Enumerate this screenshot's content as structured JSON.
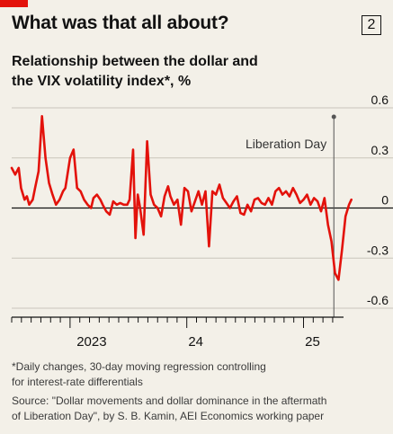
{
  "header": {
    "title": "What was that all about?",
    "badge": "2",
    "subtitle_line1": "Relationship between the dollar and",
    "subtitle_line2": "the VIX volatility index*, %",
    "accent_color": "#e3120b"
  },
  "footer": {
    "footnote_line1": "*Daily changes, 30-day moving regression controlling",
    "footnote_line2": "for interest-rate differentials",
    "source_line1": "Source: \"Dollar movements and dollar dominance in the aftermath",
    "source_line2": "of Liberation Day\", by S. B. Kamin, AEI Economics working paper"
  },
  "chart_data": {
    "type": "line",
    "title": "What was that all about?",
    "subtitle": "Relationship between the dollar and the VIX volatility index*, %",
    "ylim": [
      -0.6,
      0.6
    ],
    "yticks": [
      0.6,
      0.3,
      0,
      -0.3,
      -0.6
    ],
    "ytick_labels": [
      "0.6",
      "0.3",
      "0",
      "-0.3",
      "-0.6"
    ],
    "xlim": [
      2022.5,
      2025.42
    ],
    "xtick_labels": [
      "2023",
      "24",
      "25"
    ],
    "xtick_positions": [
      2023.0,
      2024.0,
      2025.0
    ],
    "grid": true,
    "series_color": "#e3120b",
    "annotation": {
      "label": "Liberation Day",
      "x": 2025.26
    },
    "series": [
      {
        "x": [
          2022.5,
          2022.53,
          2022.56,
          2022.58,
          2022.61,
          2022.63,
          2022.65,
          2022.68,
          2022.7,
          2022.73,
          2022.76,
          2022.79,
          2022.82,
          2022.85,
          2022.88,
          2022.91,
          2022.94,
          2022.96,
          2023.0,
          2023.03,
          2023.06,
          2023.09,
          2023.12,
          2023.15,
          2023.18,
          2023.2,
          2023.23,
          2023.26,
          2023.28,
          2023.31,
          2023.34,
          2023.37,
          2023.4,
          2023.43,
          2023.46,
          2023.49,
          2023.51,
          2023.54,
          2023.56,
          2023.58,
          2023.6,
          2023.63,
          2023.66,
          2023.69,
          2023.72,
          2023.75,
          2023.78,
          2023.81,
          2023.84,
          2023.86,
          2023.89,
          2023.92,
          2023.95,
          2023.98,
          2024.01,
          2024.04,
          2024.07,
          2024.1,
          2024.13,
          2024.16,
          2024.19,
          2024.22,
          2024.25,
          2024.28,
          2024.31,
          2024.34,
          2024.37,
          2024.4,
          2024.43,
          2024.46,
          2024.49,
          2024.52,
          2024.55,
          2024.58,
          2024.61,
          2024.64,
          2024.67,
          2024.7,
          2024.73,
          2024.76,
          2024.79,
          2024.82,
          2024.85,
          2024.88,
          2024.91,
          2024.94,
          2024.97,
          2025.0,
          2025.03,
          2025.06,
          2025.09,
          2025.12,
          2025.15,
          2025.18,
          2025.21,
          2025.24,
          2025.27,
          2025.3,
          2025.33,
          2025.36,
          2025.39,
          2025.41
        ],
        "y": [
          0.24,
          0.2,
          0.24,
          0.12,
          0.05,
          0.07,
          0.02,
          0.05,
          0.12,
          0.22,
          0.55,
          0.3,
          0.15,
          0.08,
          0.02,
          0.05,
          0.1,
          0.12,
          0.3,
          0.35,
          0.12,
          0.1,
          0.05,
          0.02,
          0.0,
          0.06,
          0.08,
          0.05,
          0.02,
          -0.02,
          -0.04,
          0.04,
          0.02,
          0.03,
          0.02,
          0.02,
          0.05,
          0.35,
          -0.18,
          0.08,
          0.0,
          -0.16,
          0.4,
          0.08,
          0.02,
          0.0,
          -0.05,
          0.07,
          0.13,
          0.07,
          0.02,
          0.05,
          -0.1,
          0.12,
          0.1,
          -0.02,
          0.04,
          0.1,
          0.02,
          0.1,
          -0.23,
          0.1,
          0.08,
          0.14,
          0.06,
          0.03,
          0.0,
          0.04,
          0.07,
          -0.03,
          -0.04,
          0.02,
          -0.02,
          0.05,
          0.06,
          0.03,
          0.02,
          0.06,
          0.02,
          0.1,
          0.12,
          0.08,
          0.1,
          0.07,
          0.12,
          0.08,
          0.03,
          0.05,
          0.08,
          0.02,
          0.06,
          0.04,
          -0.02,
          0.06,
          -0.1,
          -0.2,
          -0.39,
          -0.43,
          -0.25,
          -0.05,
          0.02,
          0.05
        ]
      }
    ]
  }
}
